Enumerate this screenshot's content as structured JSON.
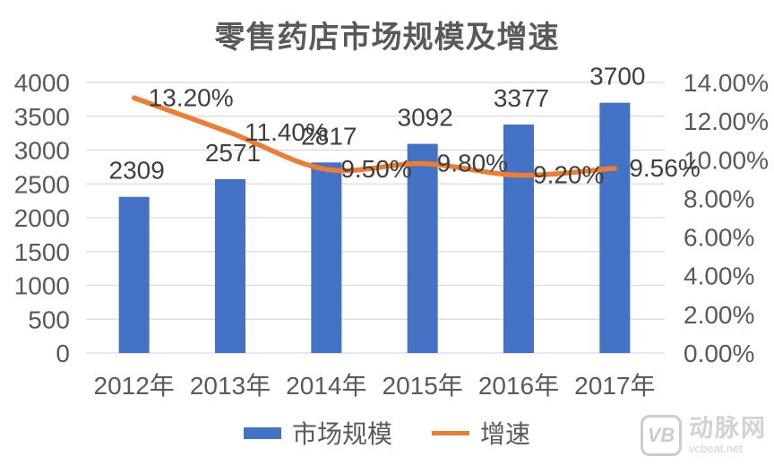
{
  "title": "零售药店市场规模及增速",
  "chart_data": {
    "type": "combo",
    "categories": [
      "2012年",
      "2013年",
      "2014年",
      "2015年",
      "2016年",
      "2017年"
    ],
    "series": [
      {
        "name": "市场规模",
        "type": "bar",
        "axis": "left",
        "values": [
          2309,
          2571,
          2817,
          3092,
          3377,
          3700
        ],
        "labels": [
          "2309",
          "2571",
          "2817",
          "3092",
          "3377",
          "3700"
        ],
        "color": "#4472C4"
      },
      {
        "name": "增速",
        "type": "line",
        "axis": "right",
        "values": [
          13.2,
          11.4,
          9.5,
          9.8,
          9.2,
          9.56
        ],
        "labels": [
          "13.20%",
          "11.40%",
          "9.50%",
          "9.80%",
          "9.20%",
          "9.56%"
        ],
        "color": "#ED7D31"
      }
    ],
    "left_axis": {
      "min": 0,
      "max": 4000,
      "step": 500,
      "tick_labels_top_to_bottom": [
        "4000",
        "3500",
        "3000",
        "2500",
        "2000",
        "1500",
        "1000",
        "500",
        "0"
      ]
    },
    "right_axis": {
      "min": 0,
      "max": 14,
      "step": 2,
      "tick_labels_top_to_bottom": [
        "14.00%",
        "12.00%",
        "10.00%",
        "8.00%",
        "6.00%",
        "4.00%",
        "2.00%",
        "0.00%"
      ]
    },
    "grid": true,
    "legend_position": "bottom"
  },
  "legend": {
    "items": [
      {
        "label": "市场规模",
        "marker": "bar",
        "color": "#4472C4"
      },
      {
        "label": "增速",
        "marker": "line",
        "color": "#ED7D31"
      }
    ]
  },
  "watermark": {
    "logo_text": "VB",
    "name": "动脉网",
    "url": "vcbeat.net"
  },
  "colors": {
    "bar": "#4472C4",
    "line": "#ED7D31",
    "grid": "#D9D9D9",
    "axis_text": "#595959",
    "data_label": "#3F3F3F",
    "title_text": "#595959",
    "watermark": "#CCCCCC"
  }
}
